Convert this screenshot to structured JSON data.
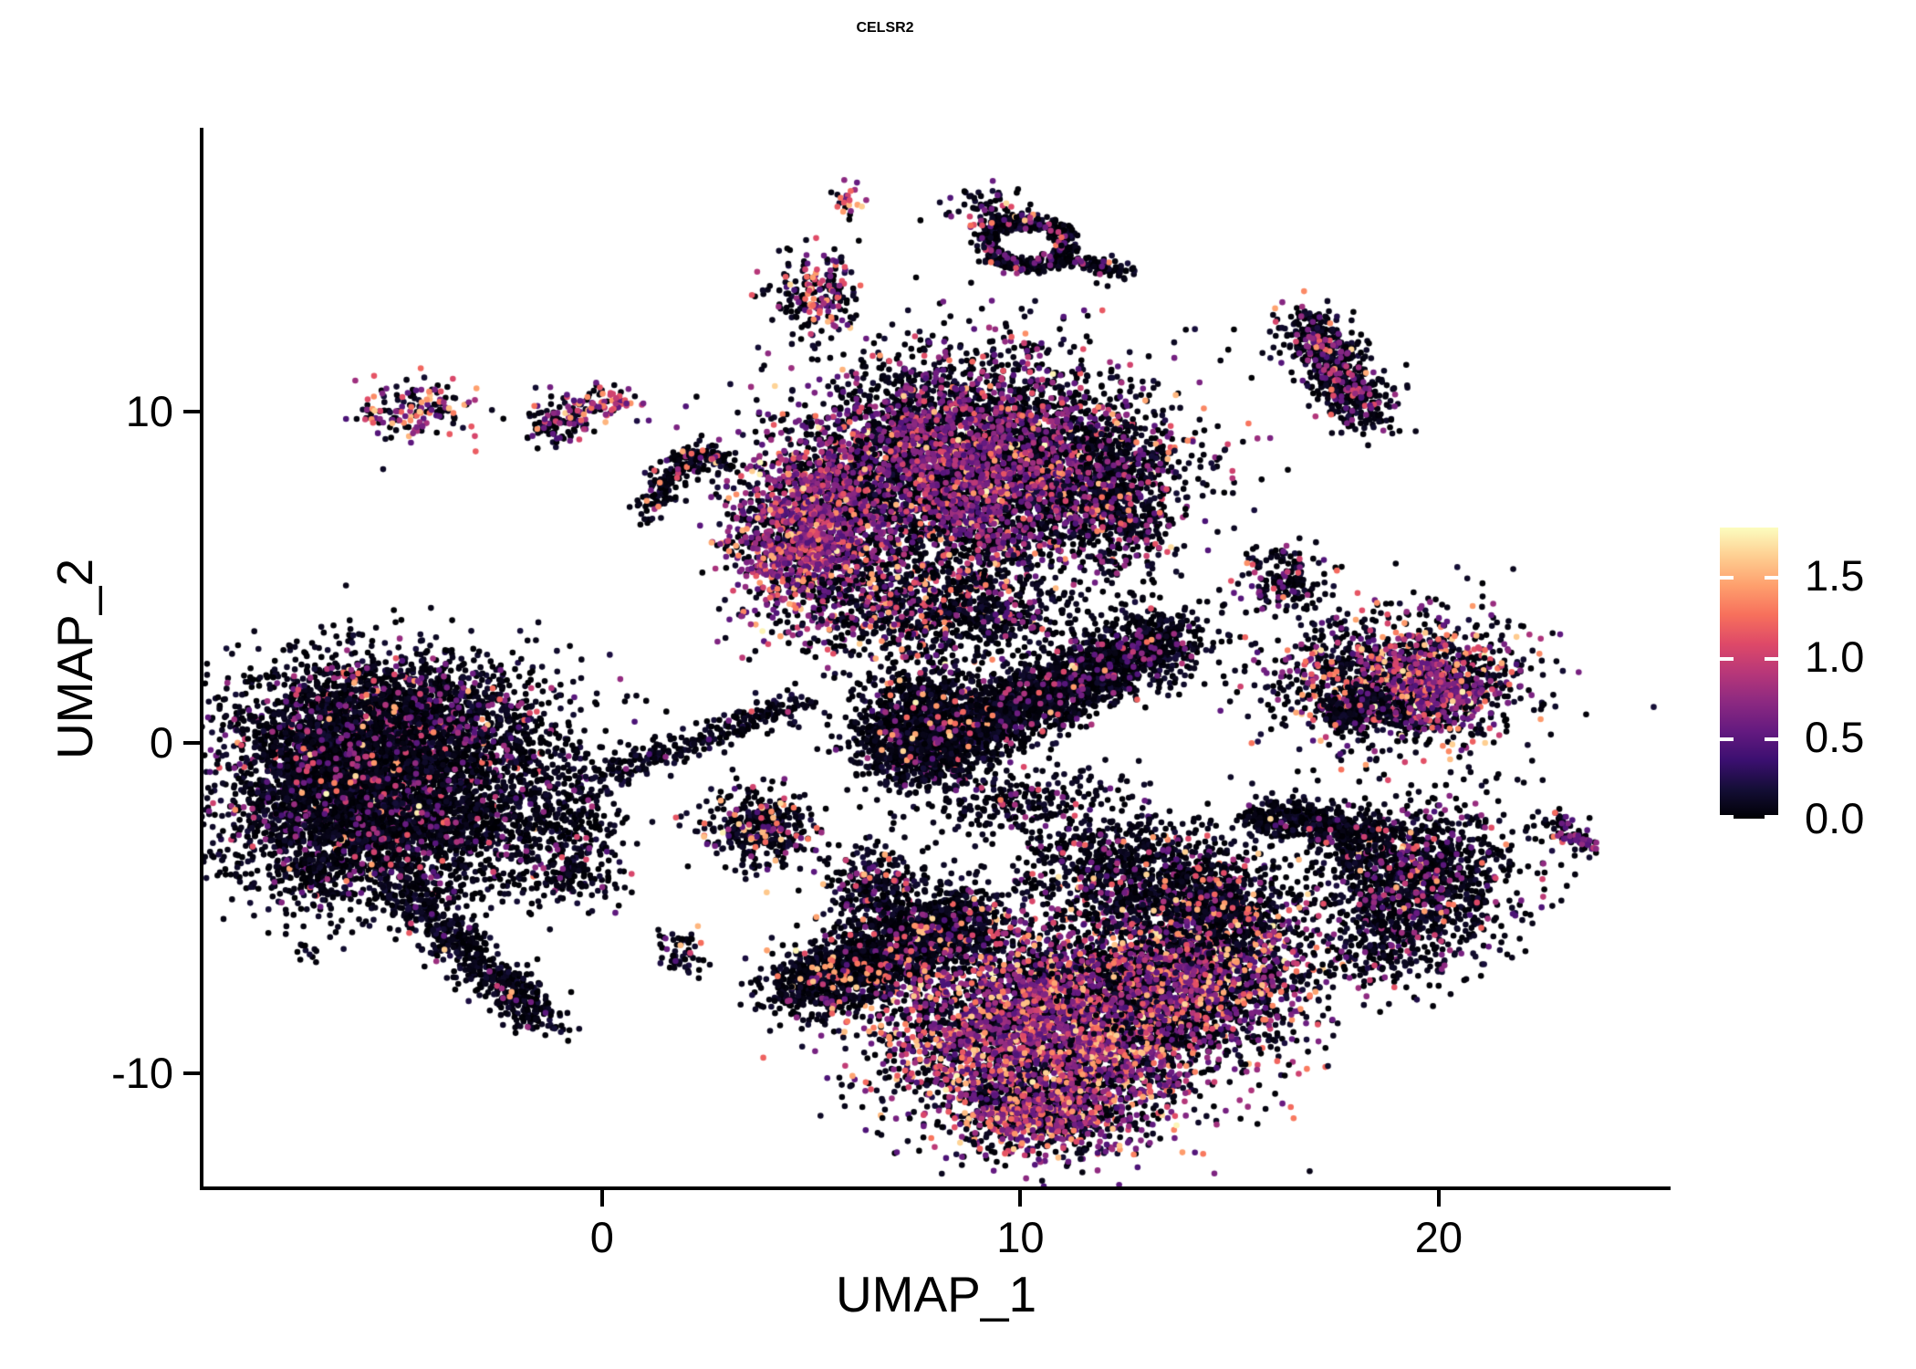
{
  "title": "CELSR2",
  "chart_data": {
    "type": "scatter",
    "title": "CELSR2",
    "xlabel": "UMAP_1",
    "ylabel": "UMAP_2",
    "xlim": [
      -9.55,
      25.52
    ],
    "ylim": [
      -13.47,
      18.53
    ],
    "x_ticks": [
      0,
      10,
      20
    ],
    "y_ticks": [
      -10,
      0,
      10
    ],
    "grid": false,
    "point_radius_px": 3.3,
    "background": "#ffffff",
    "legend": {
      "position": "right",
      "vmin": 0.0,
      "vmax": 1.8,
      "ticks": [
        {
          "label": "0.0",
          "value": 0.0
        },
        {
          "label": "0.5",
          "value": 0.5
        },
        {
          "label": "1.0",
          "value": 1.0
        },
        {
          "label": "1.5",
          "value": 1.5
        }
      ]
    },
    "colormap": {
      "name": "magma",
      "stops": [
        {
          "t": 0.0,
          "color": "#000004"
        },
        {
          "t": 0.1,
          "color": "#140e36"
        },
        {
          "t": 0.2,
          "color": "#3b0f70"
        },
        {
          "t": 0.3,
          "color": "#641a80"
        },
        {
          "t": 0.4,
          "color": "#8c2981"
        },
        {
          "t": 0.5,
          "color": "#b73779"
        },
        {
          "t": 0.6,
          "color": "#de4968"
        },
        {
          "t": 0.7,
          "color": "#f7705c"
        },
        {
          "t": 0.8,
          "color": "#fe9f6d"
        },
        {
          "t": 0.9,
          "color": "#fece91"
        },
        {
          "t": 1.0,
          "color": "#fcfdbf"
        }
      ]
    },
    "clusters": [
      {
        "name": "left-body-upper",
        "type": "blob",
        "cx": -5.0,
        "cy": 0.4,
        "sx": 1.9,
        "sy": 1.15,
        "n": 2800,
        "frac": 0.13
      },
      {
        "name": "left-body-lower",
        "type": "blob",
        "cx": -5.3,
        "cy": -2.3,
        "sx": 1.85,
        "sy": 1.25,
        "n": 2800,
        "frac": 0.07
      },
      {
        "name": "left-body-core",
        "type": "blob",
        "cx": -6.3,
        "cy": -0.8,
        "sx": 1.0,
        "sy": 1.1,
        "n": 1200,
        "frac": 0.1
      },
      {
        "name": "left-tail",
        "type": "streak",
        "x1": -4.8,
        "y1": -4.4,
        "x2": -1.35,
        "y2": -8.55,
        "sx": 0.38,
        "sy": 0.3,
        "n": 620,
        "frac": 0.03
      },
      {
        "name": "left-foot",
        "type": "blob",
        "cx": -6.8,
        "cy": -3.9,
        "sx": 0.35,
        "sy": 0.3,
        "n": 60,
        "frac": 0.05
      },
      {
        "name": "left-dots",
        "type": "blob",
        "cx": -7.0,
        "cy": -6.3,
        "sx": 0.2,
        "sy": 0.15,
        "n": 10,
        "frac": 0
      },
      {
        "name": "left-right-fringe",
        "type": "blob",
        "cx": -1.2,
        "cy": -2.4,
        "sx": 0.85,
        "sy": 1.0,
        "n": 380,
        "frac": 0.06
      },
      {
        "name": "bridge-chain",
        "type": "streak",
        "x1": -0.3,
        "y1": -1.15,
        "x2": 4.9,
        "y2": 1.3,
        "sx": 0.3,
        "sy": 0.22,
        "n": 300,
        "frac": 0.05
      },
      {
        "name": "small-left-pink",
        "type": "blob",
        "cx": -4.5,
        "cy": 10.1,
        "sx": 0.7,
        "sy": 0.45,
        "n": 150,
        "frac": 0.45,
        "hot": 0.3
      },
      {
        "name": "twin-blob-left",
        "type": "blob",
        "cx": -1.05,
        "cy": 9.7,
        "sx": 0.45,
        "sy": 0.35,
        "n": 95,
        "frac": 0.3
      },
      {
        "name": "twin-blob-right",
        "type": "blob",
        "cx": -0.1,
        "cy": 10.25,
        "sx": 0.45,
        "sy": 0.3,
        "n": 85,
        "frac": 0.6,
        "hot": 0.35
      },
      {
        "name": "check-chain-a",
        "type": "streak",
        "x1": 0.95,
        "y1": 7.0,
        "x2": 2.2,
        "y2": 8.75,
        "sx": 0.22,
        "sy": 0.2,
        "n": 160,
        "frac": 0.08,
        "hot": 0.5
      },
      {
        "name": "check-chain-b",
        "type": "streak",
        "x1": 2.2,
        "y1": 8.75,
        "x2": 3.0,
        "y2": 8.5,
        "sx": 0.18,
        "sy": 0.16,
        "n": 70,
        "frac": 0.1,
        "hot": 0.5
      },
      {
        "name": "top-main",
        "type": "blob",
        "cx": 8.9,
        "cy": 8.4,
        "sx": 2.05,
        "sy": 1.6,
        "n": 5200,
        "frac": 0.3
      },
      {
        "name": "top-left-lobe",
        "type": "blob",
        "cx": 5.0,
        "cy": 6.3,
        "sx": 0.95,
        "sy": 1.35,
        "n": 1700,
        "frac": 0.55
      },
      {
        "name": "top-right-edge",
        "type": "blob",
        "cx": 12.3,
        "cy": 7.4,
        "sx": 0.75,
        "sy": 1.15,
        "n": 700,
        "frac": 0.22
      },
      {
        "name": "top-below-scatter",
        "type": "blob",
        "cx": 7.3,
        "cy": 4.0,
        "sx": 1.1,
        "sy": 0.95,
        "n": 650,
        "frac": 0.28,
        "hot": 0.25
      },
      {
        "name": "wing-ring",
        "type": "ring",
        "cx": 10.15,
        "cy": 15.1,
        "r": 0.95,
        "thick": 0.55,
        "flat": 0.72,
        "n": 430,
        "frac": 0.12
      },
      {
        "name": "wing-tail",
        "type": "streak",
        "x1": 11.0,
        "y1": 14.6,
        "x2": 12.55,
        "y2": 14.25,
        "sx": 0.16,
        "sy": 0.12,
        "n": 110,
        "frac": 0.05
      },
      {
        "name": "wing-nub",
        "type": "blob",
        "cx": 9.2,
        "cy": 16.1,
        "sx": 0.45,
        "sy": 0.35,
        "n": 70,
        "frac": 0.3
      },
      {
        "name": "small-mid-top",
        "type": "blob",
        "cx": 5.15,
        "cy": 13.5,
        "sx": 0.5,
        "sy": 0.65,
        "n": 210,
        "frac": 0.35,
        "hot": 0.3
      },
      {
        "name": "tiny-top",
        "type": "blob",
        "cx": 5.85,
        "cy": 16.4,
        "sx": 0.2,
        "sy": 0.28,
        "n": 24,
        "frac": 0.6,
        "hot": 0.4
      },
      {
        "name": "topright-stick",
        "type": "streak",
        "x1": 16.85,
        "y1": 12.7,
        "x2": 18.25,
        "y2": 9.85,
        "sx": 0.45,
        "sy": 0.38,
        "n": 650,
        "frac": 0.16
      },
      {
        "name": "right-small",
        "type": "blob",
        "cx": 16.2,
        "cy": 4.95,
        "sx": 0.55,
        "sy": 0.5,
        "n": 170,
        "frac": 0.2
      },
      {
        "name": "right-fish",
        "type": "blob",
        "cx": 19.0,
        "cy": 1.9,
        "sx": 1.5,
        "sy": 1.05,
        "n": 1350,
        "frac": 0.28,
        "hot": 0.25
      },
      {
        "name": "right-fish-dense",
        "type": "blob",
        "cx": 19.9,
        "cy": 1.55,
        "sx": 0.7,
        "sy": 0.6,
        "n": 420,
        "frac": 0.6
      },
      {
        "name": "right-fish-tail",
        "type": "streak",
        "x1": 17.5,
        "y1": 0.7,
        "x2": 18.5,
        "y2": 1.5,
        "sx": 0.3,
        "sy": 0.25,
        "n": 220,
        "frac": 0.1
      },
      {
        "name": "mid-bird-bar",
        "type": "streak",
        "x1": 7.2,
        "y1": -0.6,
        "x2": 13.6,
        "y2": 3.3,
        "sx": 0.6,
        "sy": 0.52,
        "n": 2700,
        "frac": 0.06
      },
      {
        "name": "mid-bird-head",
        "type": "blob",
        "cx": 7.6,
        "cy": 0.6,
        "sx": 0.8,
        "sy": 0.8,
        "n": 900,
        "frac": 0.07,
        "hot": 0.4
      },
      {
        "name": "mid-bird-top",
        "type": "blob",
        "cx": 9.4,
        "cy": 3.9,
        "sx": 0.95,
        "sy": 0.6,
        "n": 330,
        "frac": 0.12
      },
      {
        "name": "mid-bird-below",
        "type": "blob",
        "cx": 9.9,
        "cy": -1.7,
        "sx": 1.25,
        "sy": 0.5,
        "n": 260,
        "frac": 0.1
      },
      {
        "name": "mid-small-left",
        "type": "blob",
        "cx": 3.8,
        "cy": -2.6,
        "sx": 0.7,
        "sy": 0.55,
        "n": 380,
        "frac": 0.14,
        "hot": 0.4
      },
      {
        "name": "mid-small-lower",
        "type": "blob",
        "cx": 6.6,
        "cy": -4.3,
        "sx": 0.6,
        "sy": 0.6,
        "n": 290,
        "frac": 0.15,
        "hot": 0.3
      },
      {
        "name": "tiny-left-mid",
        "type": "blob",
        "cx": -0.6,
        "cy": -4.0,
        "sx": 0.55,
        "sy": 0.4,
        "n": 110,
        "frac": 0.06
      },
      {
        "name": "tiny-below",
        "type": "blob",
        "cx": 1.9,
        "cy": -6.3,
        "sx": 0.3,
        "sy": 0.35,
        "n": 55,
        "frac": 0.1
      },
      {
        "name": "bottom-left-arm",
        "type": "streak",
        "x1": 4.7,
        "y1": -7.5,
        "x2": 9.0,
        "y2": -5.2,
        "sx": 0.62,
        "sy": 0.55,
        "n": 1900,
        "frac": 0.07,
        "hot": 0.5
      },
      {
        "name": "bottom-main",
        "type": "blob",
        "cx": 10.8,
        "cy": -8.6,
        "sx": 2.0,
        "sy": 1.55,
        "n": 4800,
        "frac": 0.42,
        "hot": 0.18
      },
      {
        "name": "bottom-right",
        "type": "blob",
        "cx": 14.3,
        "cy": -6.9,
        "sx": 1.35,
        "sy": 1.2,
        "n": 2000,
        "frac": 0.38,
        "hot": 0.15
      },
      {
        "name": "bottom-top-bridge",
        "type": "blob",
        "cx": 12.6,
        "cy": -3.9,
        "sx": 1.35,
        "sy": 0.9,
        "n": 850,
        "frac": 0.12
      },
      {
        "name": "bottom-tip",
        "type": "blob",
        "cx": 10.6,
        "cy": -11.2,
        "sx": 1.0,
        "sy": 0.6,
        "n": 700,
        "frac": 0.5,
        "hot": 0.2
      },
      {
        "name": "rb-main",
        "type": "blob",
        "cx": 19.4,
        "cy": -4.2,
        "sx": 1.25,
        "sy": 1.15,
        "n": 1400,
        "frac": 0.12
      },
      {
        "name": "rb-arm",
        "type": "streak",
        "x1": 15.6,
        "y1": -2.1,
        "x2": 18.4,
        "y2": -2.8,
        "sx": 0.42,
        "sy": 0.3,
        "n": 450,
        "frac": 0.05
      },
      {
        "name": "rb-orange-blob",
        "type": "blob",
        "cx": 14.6,
        "cy": -4.9,
        "sx": 0.8,
        "sy": 0.85,
        "n": 520,
        "frac": 0.16,
        "hot": 0.55
      },
      {
        "name": "rb-below-dots",
        "type": "blob",
        "cx": 18.5,
        "cy": -6.4,
        "sx": 0.7,
        "sy": 0.45,
        "n": 110,
        "frac": 0.1
      },
      {
        "name": "far-right-tiny",
        "type": "streak",
        "x1": 22.6,
        "y1": -2.2,
        "x2": 23.6,
        "y2": -3.3,
        "sx": 0.24,
        "sy": 0.18,
        "n": 95,
        "frac": 0.3
      }
    ]
  }
}
